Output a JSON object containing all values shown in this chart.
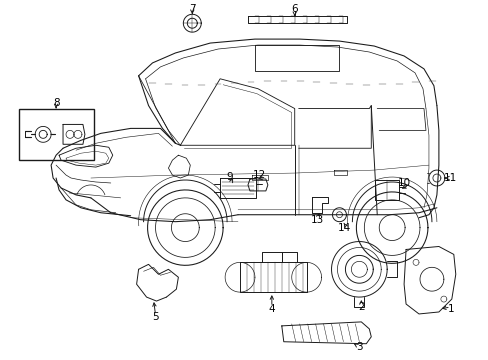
{
  "background_color": "#ffffff",
  "fig_width": 4.89,
  "fig_height": 3.6,
  "dpi": 100,
  "lc": "#1a1a1a",
  "lw": 0.7,
  "label_fontsize": 7.5
}
